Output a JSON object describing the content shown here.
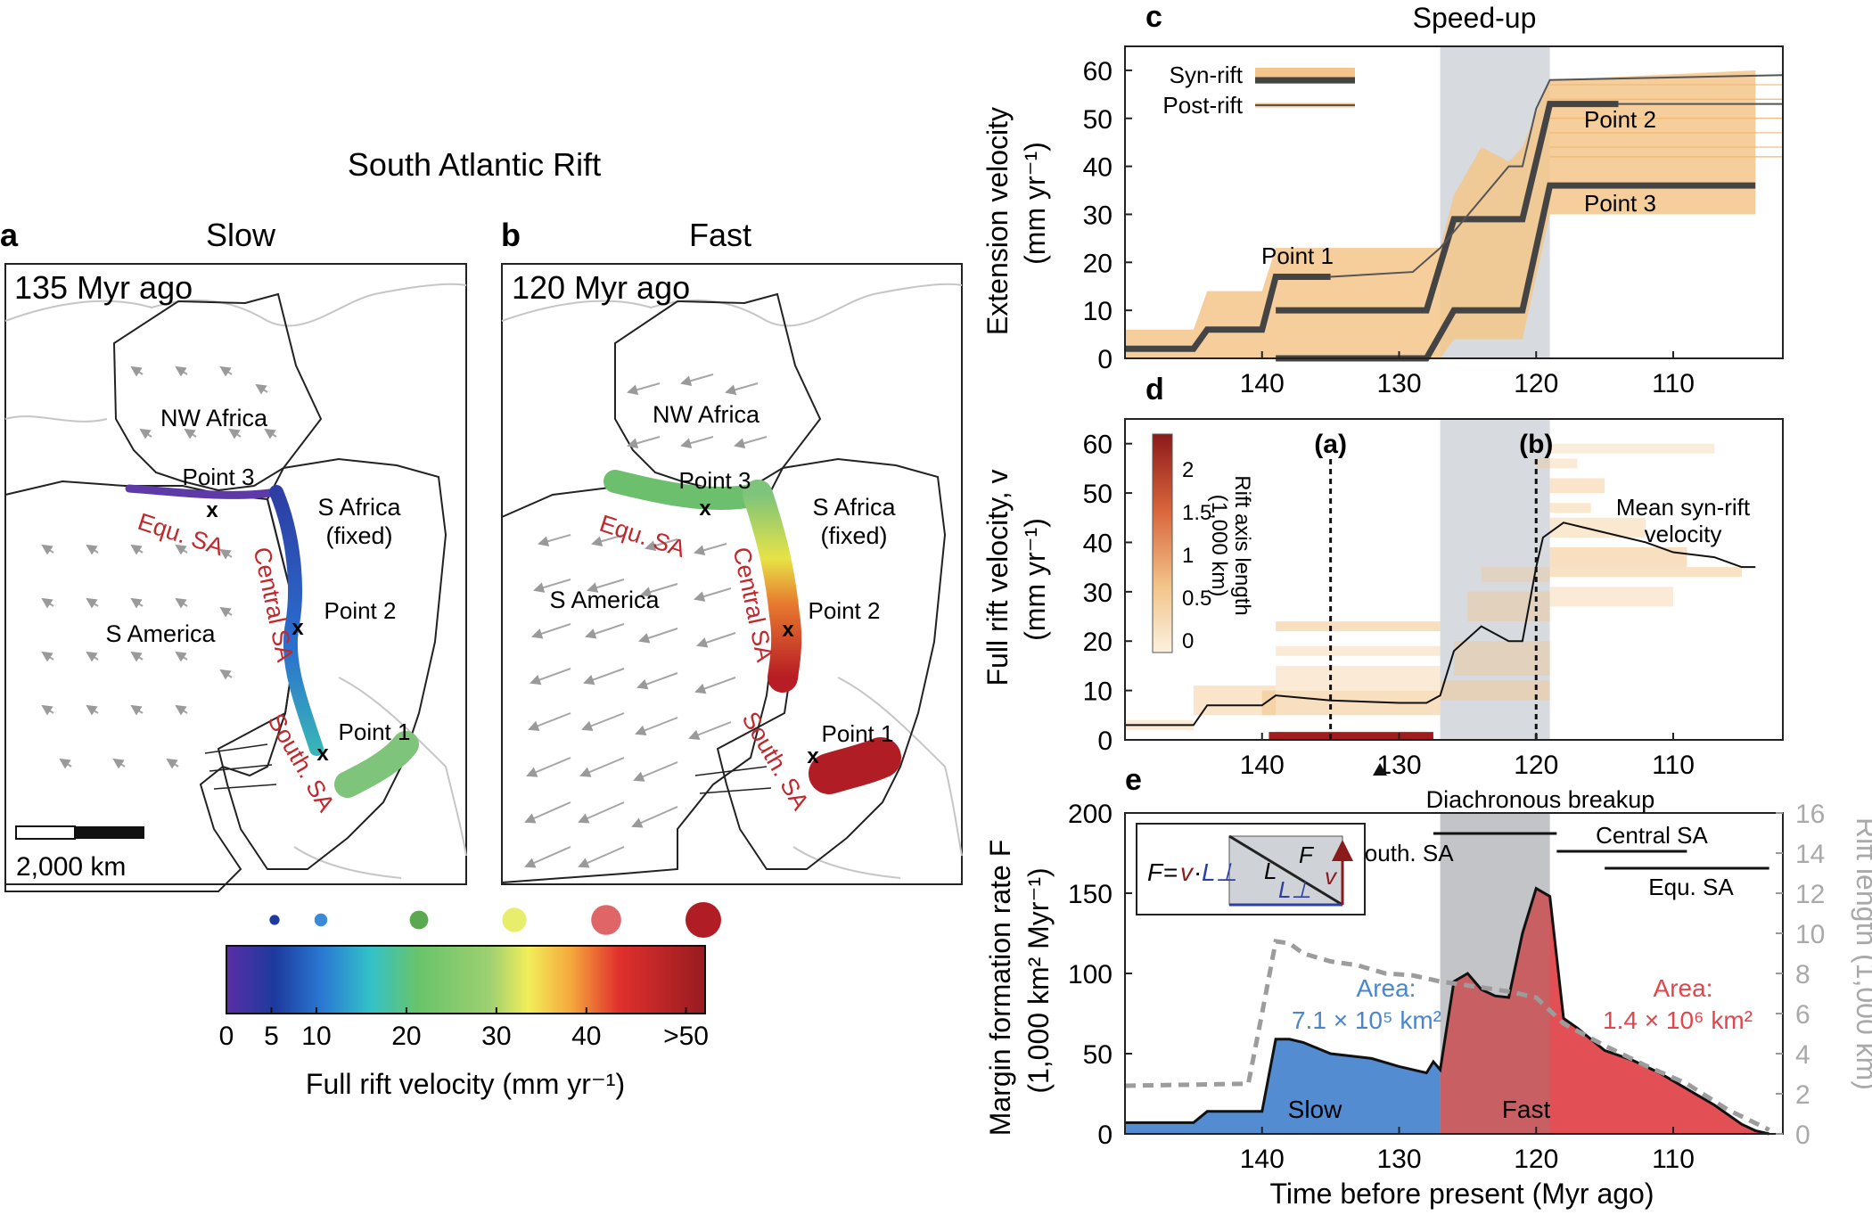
{
  "figure_title": "South Atlantic Rift",
  "panel_a": {
    "letter": "a",
    "title": "Slow",
    "time": "135 Myr ago"
  },
  "panel_b": {
    "letter": "b",
    "title": "Fast",
    "time": "120 Myr ago"
  },
  "map_labels": {
    "nw_africa": "NW Africa",
    "s_africa": "S Africa",
    "fixed": "(fixed)",
    "s_america": "S America",
    "equ_sa": "Equ. SA",
    "central_sa": "Central SA",
    "south_sa": "South. SA",
    "point1": "Point 1",
    "point2": "Point 2",
    "point3": "Point 3",
    "marker": "x"
  },
  "scale_bar": "2,000 km",
  "colorbar": {
    "label": "Full rift velocity (mm yr⁻¹)",
    "ticks": [
      "0",
      "5",
      "10",
      "20",
      "30",
      "40",
      ">50"
    ],
    "tick_values": [
      0,
      5,
      10,
      20,
      30,
      40,
      50
    ],
    "dot_values": [
      5,
      10,
      20,
      30,
      40,
      50
    ]
  },
  "panel_c": {
    "letter": "c",
    "title": "Speed-up",
    "ylabel": "Extension velocity",
    "yunit": "(mm yr⁻¹)",
    "legend_syn": "Syn-rift",
    "legend_post": "Post-rift",
    "label_p1": "Point 1",
    "label_p2": "Point 2",
    "label_p3": "Point 3"
  },
  "panel_d": {
    "letter": "d",
    "ylabel": "Full rift velocity, v",
    "yunit": "(mm yr⁻¹)",
    "mark_a": "(a)",
    "mark_b": "(b)",
    "mean_label_1": "Mean syn-rift",
    "mean_label_2": "velocity",
    "cbar_title_1": "Rift axis length",
    "cbar_title_2": "(1,000 km)",
    "cbar_ticks": [
      "2",
      "1.5",
      "1",
      "0.5",
      "0"
    ]
  },
  "panel_e": {
    "letter": "e",
    "ylabel": "Margin formation rate F",
    "yunit": "(1,000 km² Myr⁻¹)",
    "y2label": "Rift length (1,000 km)",
    "xlabel": "Time before present (Myr ago)",
    "breakup_title": "Diachronous breakup",
    "south_sa": "South. SA",
    "central_sa": "Central SA",
    "equ_sa": "Equ. SA",
    "area_slow_title": "Area:",
    "area_slow_value": "7.1 × 10⁵ km²",
    "area_fast_title": "Area:",
    "area_fast_value": "1.4 × 10⁶ km²",
    "slow": "Slow",
    "fast": "Fast",
    "inset_F": "F",
    "inset_eq": "=",
    "inset_v": "v",
    "inset_dot": "·",
    "inset_L": "L",
    "inset_Lperp": "L⊥"
  },
  "colors": {
    "slow": "#4a86cf",
    "fast": "#e0474c",
    "shade": "#d7dadf",
    "orange": "#f3c58a",
    "dark": "#444444",
    "red_text": "#c0282d"
  },
  "chart_data": [
    {
      "panel": "c",
      "type": "line",
      "title": "Speed-up",
      "xlabel": "",
      "ylabel": "Extension velocity (mm yr⁻¹)",
      "xlim": [
        150,
        102
      ],
      "ylim": [
        0,
        65
      ],
      "x_ticks": [
        140,
        130,
        120,
        110
      ],
      "y_ticks": [
        0,
        10,
        20,
        30,
        40,
        50,
        60
      ],
      "shaded_interval": [
        127,
        119
      ],
      "series": [
        {
          "name": "Point 1",
          "x": [
            150,
            145,
            144,
            140,
            139,
            135
          ],
          "y": [
            2,
            2,
            6,
            6,
            17,
            17
          ]
        },
        {
          "name": "Point 2",
          "x": [
            139,
            128,
            126,
            121,
            119,
            114
          ],
          "y": [
            10,
            10,
            29,
            29,
            53,
            53
          ]
        },
        {
          "name": "Point 3",
          "x": [
            139,
            128,
            126,
            121,
            119,
            104
          ],
          "y": [
            0,
            0,
            10,
            10,
            36,
            36
          ]
        },
        {
          "name": "Post-rift (Point 2)",
          "x": [
            114,
            102
          ],
          "y": [
            53,
            53
          ]
        },
        {
          "name": "Post-rift (Point 1)",
          "x": [
            135,
            129,
            127,
            122,
            121,
            120,
            119,
            102
          ],
          "y": [
            17,
            18,
            23,
            40,
            40,
            52,
            58,
            59
          ]
        }
      ]
    },
    {
      "panel": "d",
      "type": "line",
      "xlabel": "",
      "ylabel": "Full rift velocity, v (mm yr⁻¹)",
      "xlim": [
        150,
        102
      ],
      "ylim": [
        0,
        65
      ],
      "x_ticks": [
        140,
        130,
        120,
        110
      ],
      "y_ticks": [
        0,
        10,
        20,
        30,
        40,
        50,
        60
      ],
      "markers": [
        {
          "label": "(a)",
          "x": 135
        },
        {
          "label": "(b)",
          "x": 120
        }
      ],
      "series": [
        {
          "name": "Mean syn-rift velocity",
          "x": [
            150,
            145,
            144,
            140,
            139,
            135,
            130,
            128,
            127,
            126,
            124,
            122,
            121,
            120,
            119.5,
            118,
            115,
            112,
            110,
            107,
            105,
            104
          ],
          "y": [
            3,
            3,
            7,
            7,
            9,
            8,
            7.5,
            7.5,
            9,
            18,
            23,
            20,
            20,
            35,
            41,
            44,
            42,
            40,
            38,
            37,
            35,
            35
          ]
        }
      ]
    },
    {
      "panel": "e",
      "type": "area",
      "xlabel": "Time before present (Myr ago)",
      "ylabel": "Margin formation rate F (1,000 km² Myr⁻¹)",
      "y2label": "Rift length (1,000 km)",
      "xlim": [
        150,
        102
      ],
      "ylim": [
        0,
        200
      ],
      "y2lim": [
        0,
        16
      ],
      "x_ticks": [
        140,
        130,
        120,
        110
      ],
      "y_ticks": [
        0,
        50,
        100,
        150,
        200
      ],
      "y2_ticks": [
        0,
        2,
        4,
        6,
        8,
        10,
        12,
        14,
        16
      ],
      "shaded_interval": [
        127,
        119
      ],
      "series": [
        {
          "name": "F (slow)",
          "x": [
            150,
            145,
            144,
            140,
            139,
            138,
            137,
            135,
            132,
            130,
            128,
            127.5,
            127
          ],
          "y": [
            7,
            7,
            14,
            14,
            59,
            59,
            57,
            50,
            47,
            42,
            38,
            45,
            40
          ]
        },
        {
          "name": "F (fast)",
          "x": [
            127,
            126,
            125,
            124,
            123,
            122,
            121,
            120,
            119,
            118,
            117,
            115,
            113,
            111,
            109,
            107,
            105,
            104,
            103
          ],
          "y": [
            40,
            95,
            100,
            90,
            86,
            85,
            125,
            153,
            148,
            72,
            66,
            52,
            46,
            38,
            28,
            18,
            6,
            2,
            0
          ]
        },
        {
          "name": "Rift length",
          "x": [
            150,
            141,
            140,
            139,
            138,
            137,
            135,
            133,
            131,
            129,
            127,
            125,
            122,
            120,
            118,
            115,
            112,
            109,
            106,
            103
          ],
          "y": [
            2.4,
            2.5,
            6,
            9.6,
            9.5,
            9.0,
            8.6,
            8.4,
            8.0,
            7.9,
            7.6,
            7.4,
            7.1,
            6.8,
            5.5,
            4.4,
            3.4,
            2.5,
            1.2,
            0.2
          ]
        }
      ],
      "breakup_bars": [
        {
          "name": "South. SA",
          "from": 127.5,
          "to": 118.5
        },
        {
          "name": "Central SA",
          "from": 118.5,
          "to": 109
        },
        {
          "name": "Equ. SA",
          "from": 115,
          "to": 103
        }
      ]
    }
  ]
}
